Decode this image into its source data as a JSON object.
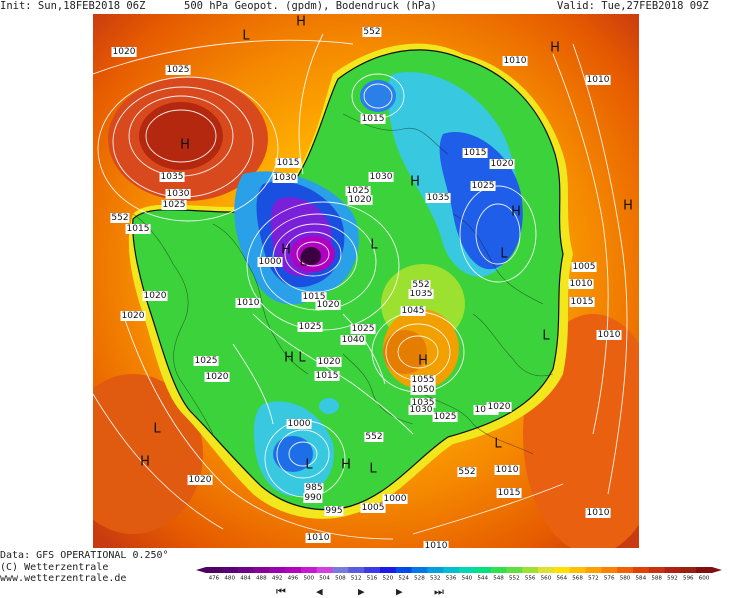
{
  "header": {
    "init": "Init: Sun,18FEB2018 06Z",
    "title": "500 hPa Geopot. (gpdm), Bodendruck (hPa)",
    "valid": "Valid: Tue,27FEB2018 09Z"
  },
  "footer": {
    "data_source": "Data: GFS OPERATIONAL 0.250°",
    "copyright": "(C) Wetterzentrale",
    "website": "www.wetterzentrale.de"
  },
  "colorbar": {
    "ticks": [
      "476",
      "480",
      "484",
      "488",
      "492",
      "496",
      "500",
      "504",
      "508",
      "512",
      "516",
      "520",
      "524",
      "528",
      "532",
      "536",
      "540",
      "544",
      "548",
      "552",
      "556",
      "560",
      "564",
      "568",
      "572",
      "576",
      "580",
      "584",
      "588",
      "592",
      "596",
      "600"
    ],
    "colors": [
      "#4b0062",
      "#5a0077",
      "#6f0088",
      "#86009a",
      "#9b00ad",
      "#b300c0",
      "#c61ad0",
      "#d240e0",
      "#7a7ad8",
      "#5b5be0",
      "#3a3ae8",
      "#1a1ae8",
      "#004be8",
      "#0078e8",
      "#00a0e0",
      "#00c0d0",
      "#00d8b0",
      "#00e080",
      "#30e050",
      "#60e040",
      "#a0e030",
      "#e0e030",
      "#ffe000",
      "#ffc000",
      "#ffa000",
      "#ff8000",
      "#f06000",
      "#e04000",
      "#c83010",
      "#b02010",
      "#982010",
      "#801010"
    ]
  },
  "controls": {
    "buttons": [
      {
        "name": "first-frame-button",
        "glyph": "⏮"
      },
      {
        "name": "previous-frame-button",
        "glyph": "◀"
      },
      {
        "name": "play-button",
        "glyph": "▶"
      },
      {
        "name": "next-frame-button",
        "glyph": "▶"
      },
      {
        "name": "last-frame-button",
        "glyph": "⏭"
      }
    ]
  },
  "map": {
    "contour_552": "552",
    "pressure_labels": [
      "1020",
      "1025",
      "1035",
      "1030",
      "1025",
      "1015",
      "1020",
      "1020",
      "1025",
      "1020",
      "1020",
      "1015",
      "1030",
      "1025",
      "1020",
      "1015",
      "1035",
      "1030",
      "1025",
      "1010",
      "1015",
      "1010",
      "1000",
      "1015",
      "1020",
      "1025",
      "1040",
      "1025",
      "1035",
      "1045",
      "1020",
      "1015",
      "1000",
      "985",
      "990",
      "995",
      "1005",
      "1000",
      "1020",
      "1055",
      "1050",
      "1035",
      "1030",
      "1025",
      "1015",
      "1020",
      "1010",
      "1015",
      "1005",
      "1010",
      "1015",
      "1010",
      "1010",
      "1010",
      "1010",
      "1010"
    ],
    "pressure_centers": [
      "H",
      "L",
      "H",
      "L",
      "H",
      "L",
      "H",
      "H",
      "L",
      "L",
      "L",
      "H",
      "L",
      "H",
      "H",
      "H",
      "L",
      "L",
      "H",
      "H",
      "L"
    ]
  }
}
